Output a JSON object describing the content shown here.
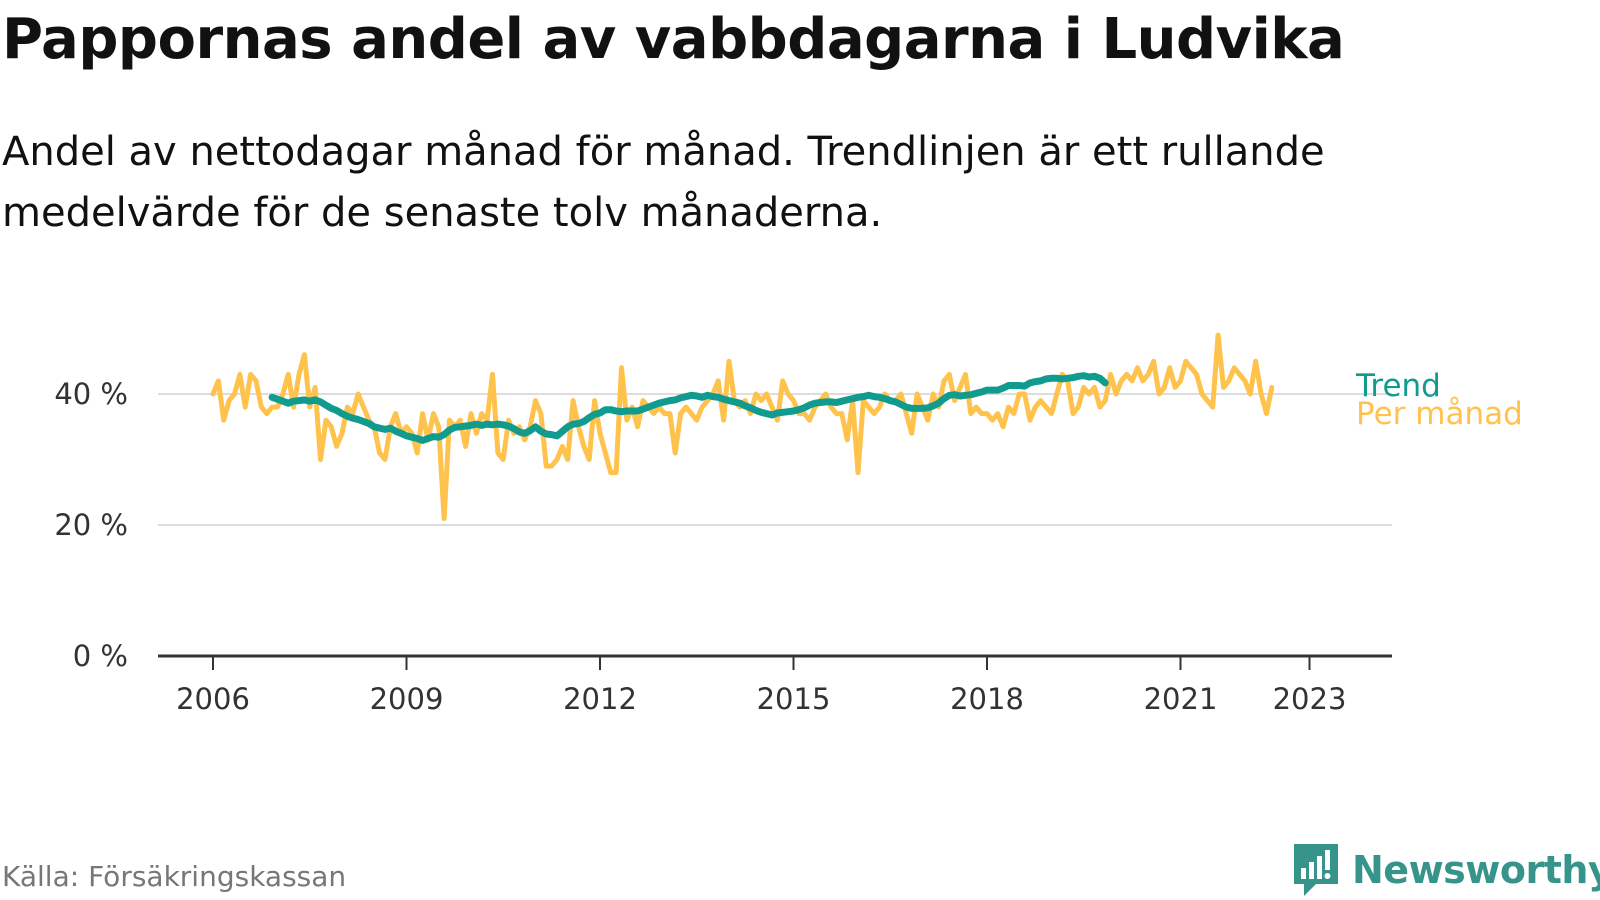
{
  "title": "Pappornas andel av vabbdagarna i Ludvika",
  "subtitle": "Andel av nettodagar månad för månad. Trendlinjen är ett rullande medelvärde för de senaste tolv månaderna.",
  "source": "Källa: Försäkringskassan",
  "brand": {
    "name": "Newsworthy",
    "icon": "newsworthy-logo-icon",
    "color": "#37948a"
  },
  "colors": {
    "trend": "#119b8f",
    "monthly": "#ffc34d",
    "grid": "#dddddd",
    "axis": "#333333"
  },
  "chart_data": {
    "type": "line",
    "x_unit": "year",
    "ylim": [
      0,
      50
    ],
    "y_ticks": [
      0,
      20,
      40
    ],
    "y_tick_labels": [
      "0 %",
      "20 %",
      "40 %"
    ],
    "x_ticks": [
      2006,
      2009,
      2012,
      2015,
      2018,
      2021,
      2023
    ],
    "x_tick_labels": [
      "2006",
      "2009",
      "2012",
      "2015",
      "2018",
      "2021",
      "2023"
    ],
    "grid": true,
    "legend_placement": "line-end-labels",
    "series": [
      {
        "name": "Per månad",
        "color": "#ffc34d",
        "start": 2006.0,
        "step": 0.08333,
        "values": [
          40,
          42,
          36,
          39,
          40,
          43,
          38,
          43,
          42,
          38,
          37,
          38,
          38,
          40,
          43,
          38,
          43,
          46,
          38,
          41,
          30,
          36,
          35,
          32,
          34,
          38,
          37,
          40,
          38,
          36,
          35,
          31,
          30,
          35,
          37,
          34,
          35,
          34,
          31,
          37,
          33,
          37,
          35,
          21,
          36,
          35,
          36,
          32,
          37,
          34,
          37,
          36,
          43,
          31,
          30,
          36,
          34,
          35,
          33,
          35,
          39,
          37,
          29,
          29,
          30,
          32,
          30,
          39,
          35,
          32,
          30,
          39,
          34,
          31,
          28,
          28,
          44,
          36,
          38,
          35,
          39,
          38,
          37,
          38,
          37,
          37,
          31,
          37,
          38,
          37,
          36,
          38,
          39,
          40,
          42,
          36,
          45,
          39,
          38,
          39,
          37,
          40,
          39,
          40,
          38,
          36,
          42,
          40,
          39,
          37,
          37,
          36,
          38,
          39,
          40,
          38,
          37,
          37,
          33,
          39,
          28,
          39,
          38,
          37,
          38,
          40,
          39,
          39,
          40,
          37,
          34,
          40,
          38,
          36,
          40,
          38,
          42,
          43,
          39,
          41,
          43,
          37,
          38,
          37,
          37,
          36,
          37,
          35,
          38,
          37,
          40,
          40,
          36,
          38,
          39,
          38,
          37,
          40,
          43,
          42,
          37,
          38,
          41,
          40,
          41,
          38,
          39,
          43,
          40,
          42,
          43,
          42,
          44,
          42,
          43,
          45,
          40,
          41,
          44,
          41,
          42,
          45,
          44,
          43,
          40,
          39,
          38,
          49,
          41,
          42,
          44,
          43,
          42,
          40,
          45,
          40,
          37,
          41
        ]
      },
      {
        "name": "Trend",
        "color": "#119b8f",
        "start": 2006.917,
        "step": 0.08333,
        "values": [
          39.5,
          39.2,
          38.9,
          38.6,
          38.9,
          39.0,
          39.1,
          38.9,
          39.1,
          38.8,
          38.3,
          37.8,
          37.5,
          37.0,
          36.6,
          36.3,
          36.1,
          35.8,
          35.5,
          35.0,
          34.8,
          34.6,
          34.8,
          34.3,
          34.0,
          33.6,
          33.4,
          33.2,
          32.9,
          33.2,
          33.5,
          33.4,
          33.8,
          34.5,
          34.9,
          35.0,
          35.1,
          35.2,
          35.4,
          35.2,
          35.4,
          35.3,
          35.4,
          35.3,
          35.1,
          34.7,
          34.2,
          34.0,
          34.4,
          35.0,
          34.3,
          33.9,
          33.8,
          33.6,
          34.3,
          35.0,
          35.4,
          35.5,
          35.8,
          36.4,
          36.9,
          37.1,
          37.6,
          37.6,
          37.4,
          37.3,
          37.4,
          37.4,
          37.4,
          37.7,
          38.0,
          38.3,
          38.6,
          38.8,
          39.0,
          39.1,
          39.4,
          39.6,
          39.8,
          39.7,
          39.5,
          39.8,
          39.6,
          39.5,
          39.2,
          39.0,
          38.8,
          38.6,
          38.2,
          37.9,
          37.5,
          37.2,
          37.0,
          36.8,
          37.1,
          37.2,
          37.3,
          37.4,
          37.6,
          37.9,
          38.3,
          38.6,
          38.7,
          38.8,
          38.8,
          38.7,
          38.9,
          39.1,
          39.3,
          39.5,
          39.6,
          39.8,
          39.6,
          39.5,
          39.3,
          39.0,
          38.8,
          38.4,
          38.0,
          37.8,
          37.8,
          37.8,
          37.9,
          38.2,
          38.6,
          39.3,
          39.8,
          39.9,
          39.7,
          39.8,
          39.9,
          40.1,
          40.3,
          40.6,
          40.6,
          40.6,
          40.9,
          41.3,
          41.3,
          41.3,
          41.2,
          41.7,
          41.9,
          42.0,
          42.3,
          42.4,
          42.4,
          42.3,
          42.4,
          42.5,
          42.7,
          42.8,
          42.6,
          42.7,
          42.4,
          41.7
        ]
      }
    ]
  }
}
